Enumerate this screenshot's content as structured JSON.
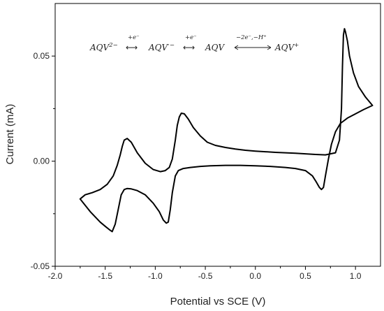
{
  "chart_data": {
    "type": "line",
    "title": "",
    "xlabel": "Potential vs SCE (V)",
    "ylabel": "Current (mA)",
    "xlim": [
      -2.0,
      1.25
    ],
    "ylim": [
      -0.05,
      0.075
    ],
    "xticks": [
      -2.0,
      -1.5,
      -1.0,
      -0.5,
      0.0,
      0.5,
      1.0
    ],
    "xtick_labels": [
      "-2.0",
      "-1.5",
      "-1.0",
      "-0.5",
      "0.0",
      "0.5",
      "1.0"
    ],
    "yticks": [
      -0.05,
      0.0,
      0.05
    ],
    "ytick_labels": [
      "-0.05",
      "0.00",
      "0.05"
    ],
    "grid": false,
    "legend": "none",
    "line_color": "#000000",
    "annotation": {
      "species": [
        "AQV",
        "AQV",
        "AQV",
        "AQV"
      ],
      "charges": [
        "2−",
        "·−",
        "",
        "+"
      ],
      "step_labels": [
        "+e⁻",
        "+e⁻",
        "−2e⁻,−H⁺"
      ]
    },
    "series": [
      {
        "x": [
          -1.75,
          -1.65,
          -1.55,
          -1.5,
          -1.46,
          -1.43,
          -1.4,
          -1.37,
          -1.34,
          -1.31,
          -1.28,
          -1.24,
          -1.18,
          -1.1,
          -1.02,
          -0.96,
          -0.92,
          -0.89,
          -0.87,
          -0.85,
          -0.83,
          -0.8,
          -0.77,
          -0.72,
          -0.65,
          -0.55,
          -0.45,
          -0.3,
          -0.15,
          0.0,
          0.15,
          0.3,
          0.4,
          0.5,
          0.57,
          0.61,
          0.64,
          0.66,
          0.68,
          0.7,
          0.73,
          0.76,
          0.8,
          0.85,
          0.92,
          1.0,
          1.08,
          1.17,
          1.1,
          1.03,
          0.98,
          0.94,
          0.92,
          0.9,
          0.89,
          0.88,
          0.87,
          0.86,
          0.84,
          0.8,
          0.7,
          0.6,
          0.5,
          0.4,
          0.3,
          0.2,
          0.1,
          0.0,
          -0.1,
          -0.2,
          -0.3,
          -0.4,
          -0.48,
          -0.55,
          -0.62,
          -0.67,
          -0.71,
          -0.74,
          -0.76,
          -0.78,
          -0.8,
          -0.83,
          -0.86,
          -0.9,
          -0.95,
          -1.02,
          -1.1,
          -1.18,
          -1.24,
          -1.28,
          -1.31,
          -1.33,
          -1.35,
          -1.38,
          -1.42,
          -1.48,
          -1.55,
          -1.63,
          -1.7,
          -1.75
        ],
        "y": [
          -0.018,
          -0.024,
          -0.029,
          -0.031,
          -0.0325,
          -0.0335,
          -0.03,
          -0.023,
          -0.016,
          -0.0135,
          -0.013,
          -0.0132,
          -0.014,
          -0.016,
          -0.02,
          -0.024,
          -0.028,
          -0.0295,
          -0.029,
          -0.023,
          -0.015,
          -0.007,
          -0.0045,
          -0.0035,
          -0.003,
          -0.0025,
          -0.0022,
          -0.002,
          -0.002,
          -0.0022,
          -0.0025,
          -0.003,
          -0.0035,
          -0.0045,
          -0.007,
          -0.01,
          -0.0125,
          -0.0135,
          -0.0125,
          -0.007,
          0.001,
          0.008,
          0.014,
          0.018,
          0.0205,
          0.0225,
          0.0245,
          0.0265,
          0.0305,
          0.0355,
          0.042,
          0.05,
          0.057,
          0.0615,
          0.063,
          0.06,
          0.045,
          0.025,
          0.01,
          0.004,
          0.003,
          0.0032,
          0.0035,
          0.0038,
          0.004,
          0.0042,
          0.0045,
          0.0048,
          0.0052,
          0.0058,
          0.0065,
          0.0075,
          0.009,
          0.012,
          0.016,
          0.02,
          0.0225,
          0.0228,
          0.021,
          0.017,
          0.01,
          0.001,
          -0.003,
          -0.0045,
          -0.005,
          -0.004,
          -0.001,
          0.004,
          0.009,
          0.0108,
          0.01,
          0.007,
          0.003,
          -0.002,
          -0.007,
          -0.011,
          -0.0135,
          -0.015,
          -0.016,
          -0.018
        ]
      }
    ]
  }
}
